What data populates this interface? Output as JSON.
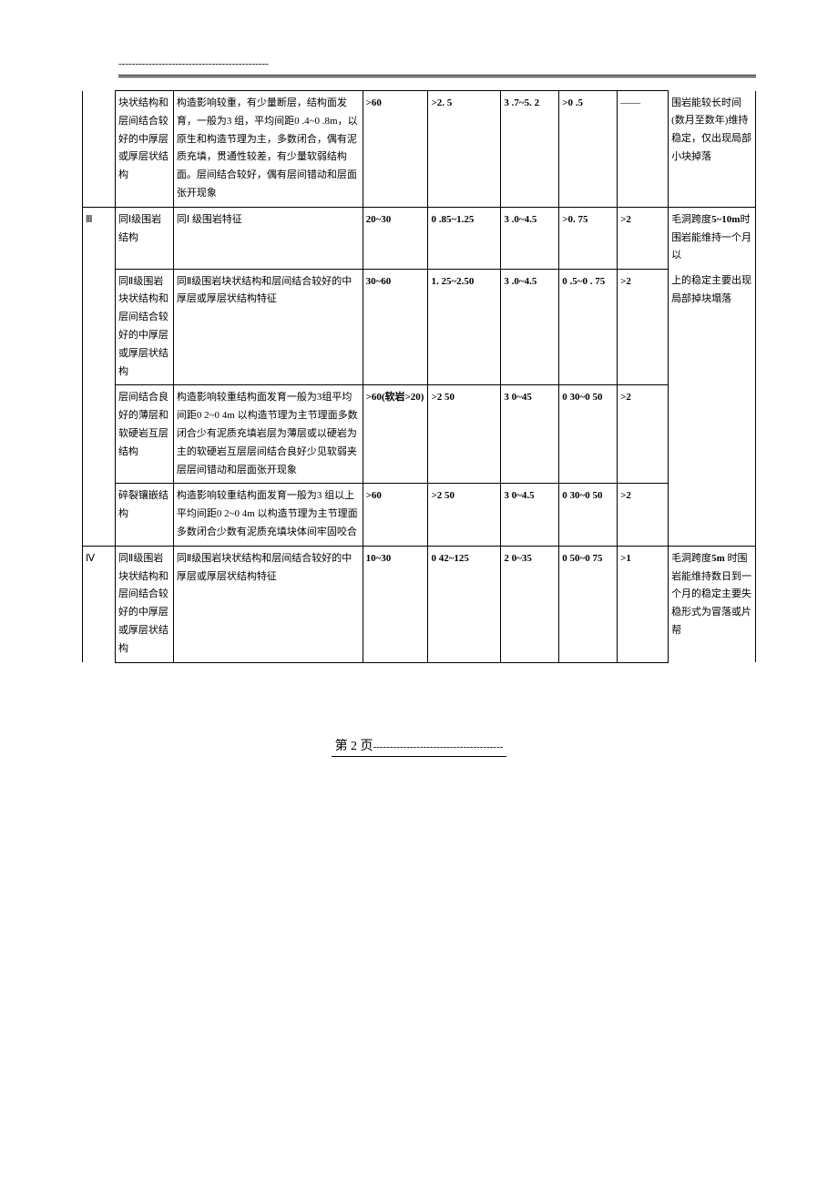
{
  "header": {
    "dashes": "---------------------------------------------"
  },
  "table": {
    "columns": {
      "widths_pct": [
        4.5,
        8,
        26,
        9,
        10,
        8,
        8,
        7,
        12
      ],
      "align": [
        "center",
        "left",
        "left",
        "left",
        "left",
        "left",
        "left",
        "left",
        "left"
      ]
    },
    "border_color": "#000000",
    "background_color": "#ffffff",
    "font_size_pt": 11,
    "line_height": 1.8,
    "rows": [
      {
        "level": "",
        "struct": "块状结构和层间结合较好的中厚层或厚层状结构",
        "desc": "构造影响较重，有少量断层，结构面发育，一般为3 组，平均间距0 .4~0 .8m，以原生和构造节理为主，多数闭合，偶有泥质充填，贯通性较差，有少量软弱结构面。层间结合较好，偶有层间错动和层面张开现象",
        "v1": ">60",
        "v2": ">2. 5",
        "v3": "3 .7~5. 2",
        "v4": ">0 .5",
        "v5": "——",
        "note": "围岩能较长时间(数月至数年)维持稳定，仅出现局部小块掉落",
        "bold_cols": [
          "v1",
          "v2",
          "v3",
          "v4"
        ],
        "border": {
          "level_no_top": true,
          "note_no_top": true
        }
      },
      {
        "level": "Ⅲ",
        "struct": "同Ⅰ级围岩结构",
        "desc": "同Ⅰ 级围岩特征",
        "v1": "20~30",
        "v2": "0 .85~1.25",
        "v3": "3 .0~4.5",
        "v4": ">0. 75",
        "v5": ">2",
        "note": "毛洞跨度5~10m时围岩能维持一个月以",
        "bold_cols": [
          "v1",
          "v2",
          "v3",
          "v4",
          "v5"
        ],
        "note_bold_parts": [
          "5~10m"
        ],
        "level_rowspan": 4,
        "border": {
          "note_no_bottom": true
        }
      },
      {
        "struct": "同Ⅱ级围岩块状结构和层间结合较好的中厚层或厚层状结构",
        "desc": "同Ⅱ级围岩块状结构和层间结合较好的中厚层或厚层状结构特征",
        "v1": "30~60",
        "v2": "1. 25~2.50",
        "v3": "3 .0~4.5",
        "v4": "0 .5~0 . 75",
        "v5": ">2",
        "note": "上的稳定主要出现局部掉块塌落",
        "bold_cols": [
          "v1",
          "v2",
          "v3",
          "v4",
          "v5"
        ],
        "border": {
          "note_no_top": true,
          "note_no_bottom": true
        }
      },
      {
        "struct": "层间结合良好的薄层和软硬岩互层结构",
        "desc": "构造影响较重结构面发育一般为3组平均间距0 2~0 4m  以构造节理为主节理面多数闭合少有泥质充填岩层为薄层或以硬岩为主的软硬岩互层层间结合良好少见软弱夹层层间错动和层面张开现象",
        "v1": ">60(软岩>20)",
        "v2": ">2 50",
        "v3": "3 0~45",
        "v4": "0 30~0 50",
        "v5": ">2",
        "note": "",
        "bold_cols": [
          "v1",
          "v2",
          "v3",
          "v4",
          "v5"
        ],
        "border": {
          "note_no_top": true,
          "note_no_bottom": true
        }
      },
      {
        "struct": "碎裂镶嵌结构",
        "desc": "构造影响较重结构面发育一般为3  组以上平均间距0 2~0 4m  以构造节理为主节理面多数闭合少数有泥质充填块体间牢固咬合",
        "v1": ">60",
        "v2": ">2 50",
        "v3": "3 0~4.5",
        "v4": "0 30~0 50",
        "v5": ">2",
        "note": "",
        "bold_cols": [
          "v1",
          "v2",
          "v3",
          "v4",
          "v5"
        ],
        "border": {
          "note_no_top": true
        }
      },
      {
        "level": "Ⅳ",
        "struct": "同Ⅱ级围岩块状结构和层间结合较好的中厚层或厚层状结构",
        "desc": "同Ⅱ级围岩块状结构和层间结合较好的中厚层或厚层状结构特征",
        "v1": "10~30",
        "v2": "0 42~125",
        "v3": "2 0~35",
        "v4": "0 50~0 75",
        "v5": ">1",
        "note": "毛洞跨度5m 时围岩能维持数日到一个月的稳定主要失稳形式为冒落或片帮",
        "bold_cols": [
          "v1",
          "v2",
          "v3",
          "v4",
          "v5"
        ],
        "note_bold_parts": [
          "5m"
        ],
        "border": {
          "level_no_bottom": true,
          "note_no_bottom": true
        }
      }
    ]
  },
  "footer": {
    "page_label": "第 2 页",
    "dashes": "---------------------------------------"
  }
}
